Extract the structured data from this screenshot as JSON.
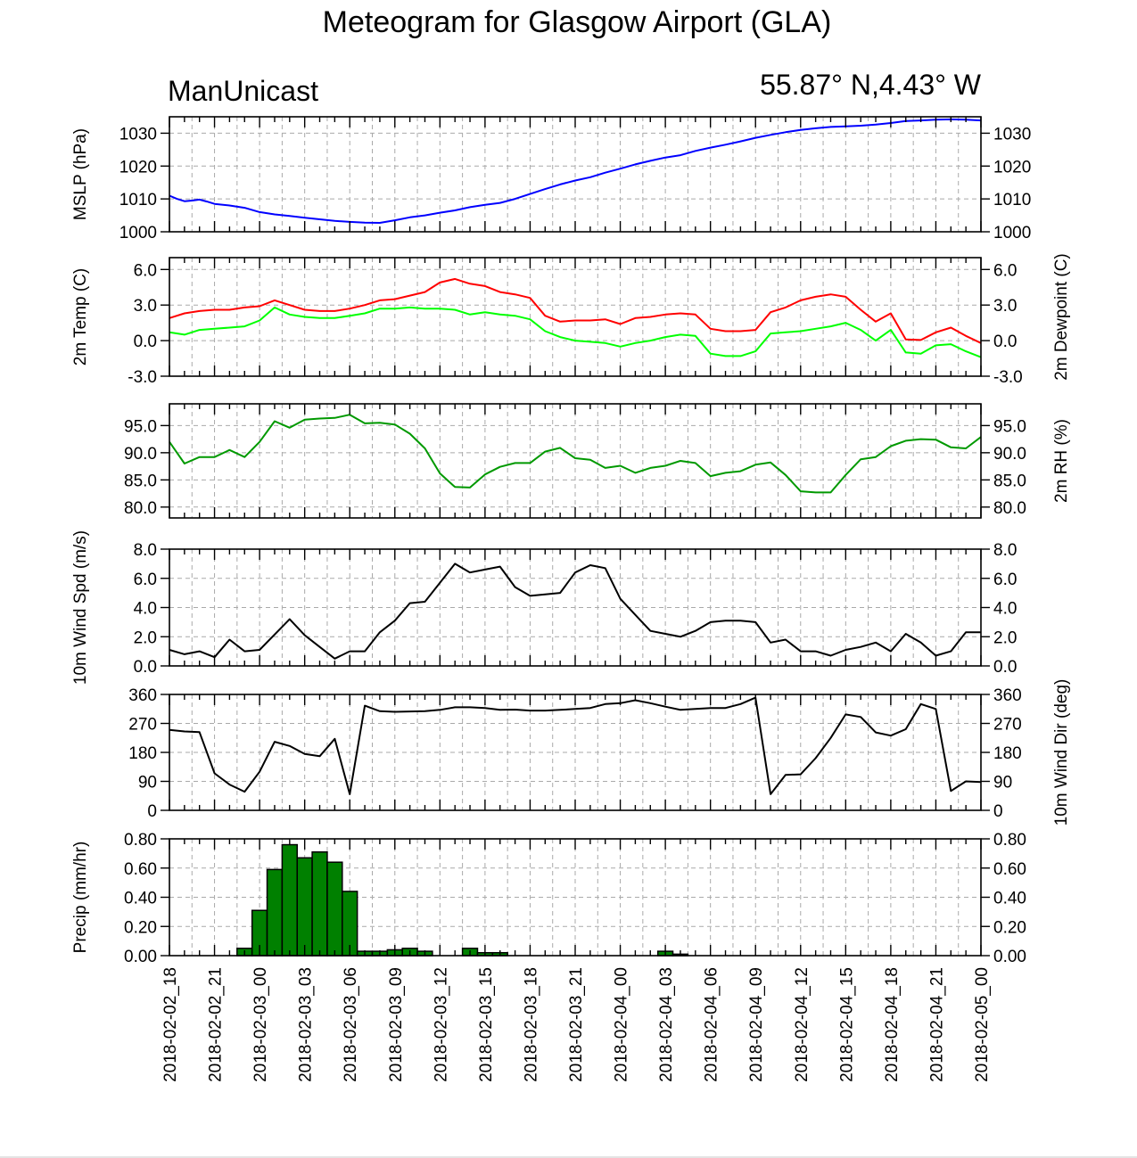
{
  "title": "Meteogram for Glasgow Airport (GLA)",
  "left_subtitle": "ManUnicast",
  "right_subtitle": "55.87° N,4.43° W",
  "x_tick_labels": [
    "2018-02-02_18",
    "2018-02-02_21",
    "2018-02-03_00",
    "2018-02-03_03",
    "2018-02-03_06",
    "2018-02-03_09",
    "2018-02-03_12",
    "2018-02-03_15",
    "2018-02-03_18",
    "2018-02-03_21",
    "2018-02-04_00",
    "2018-02-04_03",
    "2018-02-04_06",
    "2018-02-04_09",
    "2018-02-04_12",
    "2018-02-04_15",
    "2018-02-04_18",
    "2018-02-04_21",
    "2018-02-05_00"
  ],
  "chart_data": [
    {
      "type": "line",
      "x_unit": "forecast hour from 2018-02-02_18",
      "ylabel": "MSLP (hPa)",
      "ylim": [
        1000,
        1035
      ],
      "yticks": [
        "1000",
        "1010",
        "1020",
        "1030"
      ],
      "grid": true,
      "series": [
        {
          "color": "#0000ff",
          "x": [
            0,
            1,
            2,
            3,
            4,
            5,
            6,
            8,
            10,
            12,
            14,
            16,
            18,
            20,
            22,
            24,
            26,
            28,
            30,
            32,
            34,
            36,
            38,
            40,
            42,
            44,
            46,
            48,
            50,
            52,
            54,
            56,
            58,
            60,
            62,
            64,
            66,
            68,
            70,
            72,
            74,
            76,
            78,
            80,
            82,
            84,
            86,
            88,
            90,
            92,
            94,
            96,
            98,
            100,
            102,
            104,
            106,
            108
          ],
          "y": [
            1011,
            1010,
            1009.3,
            1009.5,
            1009.8,
            1009.2,
            1008.5,
            1008,
            1007.3,
            1006,
            1005.3,
            1004.8,
            1004.3,
            1003.8,
            1003.3,
            1003,
            1002.8,
            1002.7,
            1003.5,
            1004.4,
            1005,
            1005.8,
            1006.5,
            1007.5,
            1008.2,
            1008.8,
            1010,
            1011.5,
            1013,
            1014.4,
            1015.6,
            1016.6,
            1018,
            1019.2,
            1020.5,
            1021.6,
            1022.6,
            1023.3,
            1024.6,
            1025.6,
            1026.5,
            1027.5,
            1028.6,
            1029.5,
            1030.3,
            1031,
            1031.5,
            1031.9,
            1032.1,
            1032.3,
            1032.6,
            1033.1,
            1033.7,
            1033.9,
            1034.1,
            1034.2,
            1034.1,
            1033.9
          ]
        }
      ]
    },
    {
      "type": "line",
      "x_unit": "forecast hour from 2018-02-02_18",
      "ylabel": "2m Temp (C)",
      "ylabel_right": "2m Dewpoint (C)",
      "ylim": [
        -3,
        7
      ],
      "yticks": [
        "-3.0",
        "0.0",
        "3.0",
        "6.0"
      ],
      "grid": true,
      "series": [
        {
          "color": "#ff0000",
          "x": [
            0,
            2,
            4,
            6,
            8,
            10,
            12,
            14,
            16,
            18,
            20,
            22,
            24,
            26,
            28,
            30,
            32,
            34,
            36,
            38,
            40,
            42,
            44,
            46,
            48,
            50,
            52,
            54,
            56,
            58,
            60,
            62,
            64,
            66,
            68,
            70,
            72,
            74,
            76,
            78,
            80,
            82,
            84,
            86,
            88,
            90,
            92,
            94,
            96,
            98,
            100,
            102,
            104,
            106,
            108
          ],
          "y": [
            1.9,
            2.3,
            2.5,
            2.6,
            2.6,
            2.8,
            2.9,
            3.4,
            3.0,
            2.6,
            2.5,
            2.5,
            2.7,
            3.0,
            3.4,
            3.5,
            3.8,
            4.1,
            4.9,
            5.2,
            4.8,
            4.6,
            4.1,
            3.9,
            3.6,
            2.1,
            1.6,
            1.7,
            1.7,
            1.8,
            1.4,
            1.9,
            2.0,
            2.2,
            2.3,
            2.2,
            1.0,
            0.8,
            0.8,
            0.9,
            2.4,
            2.8,
            3.4,
            3.7,
            3.9,
            3.7,
            2.6,
            1.6,
            2.3,
            0.1,
            0.05,
            0.7,
            1.1,
            0.4,
            -0.2
          ]
        },
        {
          "color": "#00ff00",
          "x": [
            0,
            2,
            4,
            6,
            8,
            10,
            12,
            14,
            16,
            18,
            20,
            22,
            24,
            26,
            28,
            30,
            32,
            34,
            36,
            38,
            40,
            42,
            44,
            46,
            48,
            50,
            52,
            54,
            56,
            58,
            60,
            62,
            64,
            66,
            68,
            70,
            72,
            74,
            76,
            78,
            80,
            82,
            84,
            86,
            88,
            90,
            92,
            94,
            96,
            98,
            100,
            102,
            104,
            106,
            108
          ],
          "y": [
            0.7,
            0.5,
            0.9,
            1.0,
            1.1,
            1.2,
            1.7,
            2.8,
            2.2,
            2.0,
            1.9,
            1.9,
            2.1,
            2.3,
            2.7,
            2.7,
            2.8,
            2.7,
            2.7,
            2.6,
            2.2,
            2.4,
            2.2,
            2.1,
            1.8,
            0.8,
            0.3,
            0.0,
            -0.1,
            -0.2,
            -0.5,
            -0.2,
            0.0,
            0.3,
            0.5,
            0.4,
            -1.1,
            -1.3,
            -1.3,
            -0.9,
            0.6,
            0.7,
            0.8,
            1.0,
            1.2,
            1.5,
            0.9,
            0.0,
            0.9,
            -1.0,
            -1.1,
            -0.4,
            -0.3,
            -0.9,
            -1.4
          ]
        }
      ]
    },
    {
      "type": "line",
      "x_unit": "forecast hour from 2018-02-02_18",
      "ylabel_right": "2m RH (%)",
      "ylim": [
        78,
        99
      ],
      "yticks": [
        "80.0",
        "85.0",
        "90.0",
        "95.0"
      ],
      "grid": true,
      "series": [
        {
          "color": "#009900",
          "x": [
            0,
            2,
            4,
            6,
            8,
            10,
            12,
            14,
            16,
            18,
            20,
            22,
            24,
            26,
            28,
            30,
            32,
            34,
            36,
            38,
            40,
            42,
            44,
            46,
            48,
            50,
            52,
            54,
            56,
            58,
            60,
            62,
            64,
            66,
            68,
            70,
            72,
            74,
            76,
            78,
            80,
            82,
            84,
            86,
            88,
            90,
            92,
            94,
            96,
            98,
            100,
            102,
            104,
            106,
            108
          ],
          "y": [
            92,
            88,
            89.2,
            89.2,
            90.5,
            89.2,
            92,
            95.8,
            94.6,
            96.1,
            96.3,
            96.4,
            97,
            95.4,
            95.5,
            95.2,
            93.5,
            90.8,
            86.2,
            83.7,
            83.6,
            86,
            87.4,
            88.1,
            88.1,
            90.2,
            90.9,
            89,
            88.7,
            87.2,
            87.6,
            86.3,
            87.2,
            87.6,
            88.5,
            88.1,
            85.7,
            86.3,
            86.6,
            87.8,
            88.2,
            85.9,
            82.9,
            82.7,
            82.7,
            85.9,
            88.8,
            89.2,
            91.2,
            92.2,
            92.5,
            92.4,
            91,
            90.8,
            92.9
          ]
        }
      ]
    },
    {
      "type": "line",
      "x_unit": "forecast hour from 2018-02-02_18",
      "ylabel": "10m Wind Spd (m/s)",
      "ylim": [
        0,
        8
      ],
      "yticks": [
        "0.0",
        "2.0",
        "4.0",
        "6.0",
        "8.0"
      ],
      "grid": true,
      "series": [
        {
          "color": "#000000",
          "x": [
            0,
            2,
            4,
            6,
            8,
            10,
            12,
            16,
            18,
            20,
            22,
            24,
            26,
            28,
            30,
            32,
            34,
            38,
            40,
            42,
            44,
            46,
            48,
            50,
            52,
            54,
            56,
            58,
            60,
            62,
            64,
            66,
            68,
            70,
            72,
            74,
            76,
            78,
            80,
            82,
            84,
            86,
            88,
            90,
            92,
            94,
            96,
            98,
            100,
            102,
            104,
            106,
            108
          ],
          "y": [
            1.1,
            0.8,
            1.0,
            0.6,
            1.8,
            1.0,
            1.1,
            3.2,
            2.1,
            1.3,
            0.5,
            1.0,
            1.0,
            2.3,
            3.1,
            4.3,
            4.4,
            7.0,
            6.4,
            6.6,
            6.8,
            5.4,
            4.8,
            4.9,
            5.0,
            6.4,
            6.9,
            6.7,
            4.6,
            3.5,
            2.4,
            2.2,
            2.0,
            2.4,
            3.0,
            3.1,
            3.1,
            3.0,
            1.6,
            1.8,
            1.0,
            1.0,
            0.7,
            1.1,
            1.3,
            1.6,
            1.0,
            2.2,
            1.6,
            0.7,
            1.0,
            2.3,
            2.3
          ]
        }
      ]
    },
    {
      "type": "line",
      "x_unit": "forecast hour from 2018-02-02_18",
      "ylabel_right": "10m Wind Dir (deg)",
      "ylim": [
        0,
        360
      ],
      "yticks": [
        "0",
        "90",
        "180",
        "270",
        "360"
      ],
      "grid": true,
      "series": [
        {
          "color": "#000000",
          "x": [
            0,
            2,
            4,
            6,
            8,
            10,
            12,
            14,
            16,
            18,
            20,
            22,
            24,
            26,
            28,
            30,
            32,
            34,
            36,
            38,
            40,
            42,
            44,
            46,
            48,
            50,
            52,
            54,
            56,
            58,
            60,
            62,
            64,
            66,
            68,
            70,
            72,
            74,
            76,
            78,
            80,
            82,
            84,
            86,
            88,
            90,
            92,
            94,
            96,
            98,
            100,
            102,
            104,
            106,
            108
          ],
          "y": [
            250,
            245,
            243,
            115,
            80,
            58,
            120,
            213,
            200,
            175,
            168,
            222,
            50,
            325,
            308,
            306,
            307,
            308,
            312,
            320,
            320,
            318,
            312,
            313,
            310,
            310,
            312,
            315,
            318,
            330,
            333,
            342,
            333,
            322,
            312,
            315,
            318,
            318,
            330,
            350,
            50,
            110,
            112,
            162,
            225,
            298,
            290,
            242,
            232,
            252,
            330,
            315,
            60,
            90,
            88
          ]
        }
      ]
    },
    {
      "type": "bar",
      "x_unit": "forecast hour from 2018-02-02_18, bar centre",
      "ylabel": "Precip (mm/hr)",
      "ylim": [
        0,
        0.8
      ],
      "yticks": [
        "0.00",
        "0.20",
        "0.40",
        "0.60",
        "0.80"
      ],
      "grid": true,
      "bar_color": "#008000",
      "x": [
        8,
        10,
        12,
        14,
        16,
        18,
        20,
        22,
        24,
        26,
        28,
        30,
        32,
        34,
        36,
        38,
        40,
        42,
        44,
        46,
        48,
        50,
        52,
        54,
        56,
        58,
        60,
        62,
        64,
        66,
        68,
        70,
        72,
        74
      ],
      "values": [
        0.0,
        0.05,
        0.31,
        0.59,
        0.76,
        0.67,
        0.71,
        0.64,
        0.44,
        0.03,
        0.03,
        0.04,
        0.05,
        0.03,
        0.0,
        0.0,
        0.05,
        0.02,
        0.02,
        0.0,
        0.0,
        0.0,
        0.0,
        0.0,
        0.0,
        0.0,
        0.0,
        0.0,
        0.0,
        0.03,
        0.01,
        0.0,
        0.0,
        0.0
      ]
    }
  ]
}
